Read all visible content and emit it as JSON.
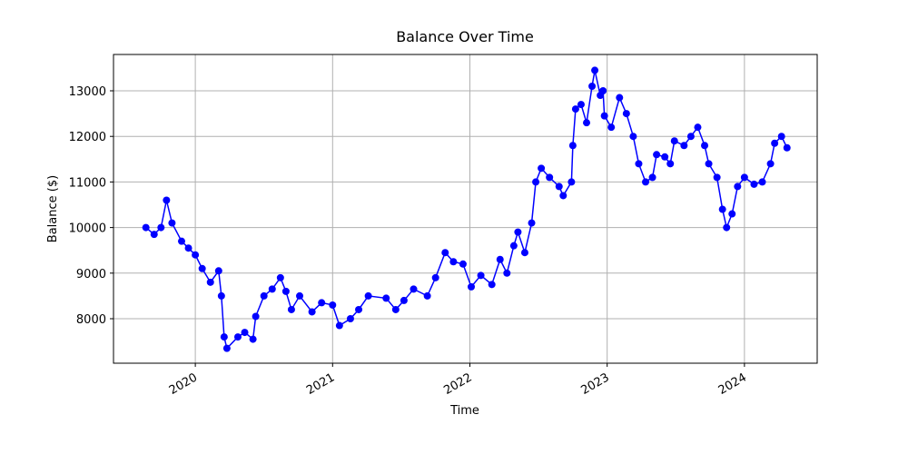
{
  "chart_data": {
    "type": "line",
    "title": "Balance Over Time",
    "x_label": "Time",
    "y_label": "Balance ($)",
    "x": [
      2019.64,
      2019.7,
      2019.75,
      2019.79,
      2019.83,
      2019.9,
      2019.95,
      2020.0,
      2020.05,
      2020.11,
      2020.17,
      2020.19,
      2020.21,
      2020.23,
      2020.31,
      2020.36,
      2020.42,
      2020.44,
      2020.5,
      2020.56,
      2020.62,
      2020.66,
      2020.7,
      2020.76,
      2020.85,
      2020.92,
      2021.0,
      2021.05,
      2021.13,
      2021.19,
      2021.26,
      2021.39,
      2021.46,
      2021.52,
      2021.59,
      2021.69,
      2021.75,
      2021.82,
      2021.88,
      2021.95,
      2022.01,
      2022.08,
      2022.16,
      2022.22,
      2022.27,
      2022.32,
      2022.35,
      2022.4,
      2022.45,
      2022.48,
      2022.52,
      2022.58,
      2022.65,
      2022.68,
      2022.74,
      2022.75,
      2022.77,
      2022.81,
      2022.85,
      2022.89,
      2022.91,
      2022.95,
      2022.97,
      2022.98,
      2023.03,
      2023.09,
      2023.14,
      2023.19,
      2023.23,
      2023.28,
      2023.33,
      2023.36,
      2023.42,
      2023.46,
      2023.49,
      2023.56,
      2023.61,
      2023.66,
      2023.71,
      2023.74,
      2023.8,
      2023.84,
      2023.87,
      2023.91,
      2023.95,
      2024.0,
      2024.07,
      2024.13,
      2024.19,
      2024.22,
      2024.27,
      2024.31
    ],
    "values": [
      10000,
      9850,
      10000,
      10600,
      10100,
      9700,
      9550,
      9400,
      9100,
      8800,
      9050,
      8500,
      7600,
      7350,
      7600,
      7700,
      7550,
      8050,
      8500,
      8650,
      8900,
      8600,
      8200,
      8500,
      8150,
      8350,
      8300,
      7850,
      8000,
      8200,
      8500,
      8450,
      8200,
      8400,
      8650,
      8500,
      8900,
      9450,
      9250,
      9200,
      8700,
      8950,
      8750,
      9300,
      9000,
      9600,
      9900,
      9450,
      10100,
      11000,
      11300,
      11100,
      10900,
      10700,
      11000,
      11800,
      12600,
      12700,
      12300,
      13100,
      13450,
      12900,
      13000,
      12450,
      12200,
      12850,
      12500,
      12000,
      11400,
      11000,
      11100,
      11600,
      11550,
      11400,
      11900,
      11800,
      12000,
      12200,
      11800,
      11400,
      11100,
      10400,
      10000,
      10300,
      10900,
      11100,
      10950,
      11000,
      11400,
      11850,
      12000,
      11750
    ],
    "color": "#0000ff",
    "xlim": [
      2019.404,
      2024.53
    ],
    "xticks": [
      2020,
      2021,
      2022,
      2023,
      2024
    ],
    "ylim": [
      7024,
      13797
    ],
    "yticks": [
      8000,
      9000,
      10000,
      11000,
      12000,
      13000
    ],
    "grid": true
  }
}
